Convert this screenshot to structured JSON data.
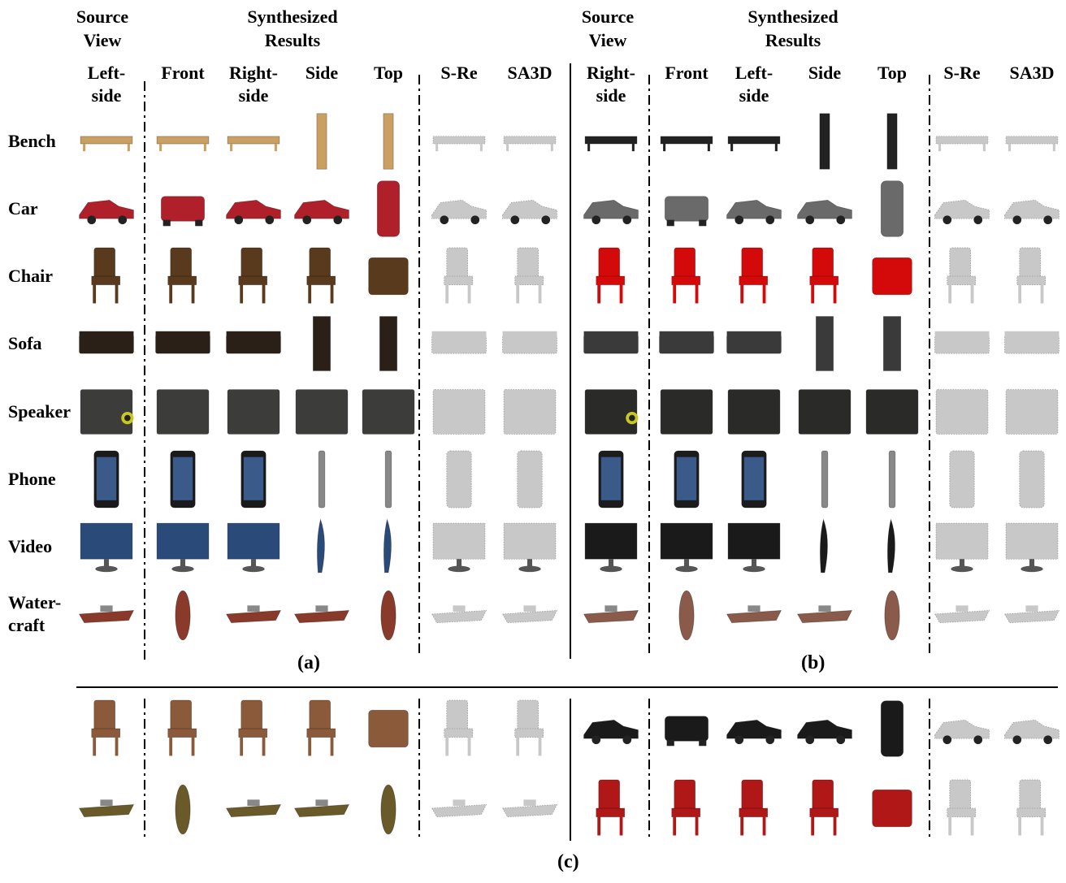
{
  "panel_a": {
    "header_source": "Source\nView",
    "header_synth": "Synthesized\nResults",
    "columns": [
      "Left-\nside",
      "Front",
      "Right-\nside",
      "Side",
      "Top",
      "S-Re",
      "SA3D"
    ],
    "label": "(a)"
  },
  "panel_b": {
    "header_source": "Source\nView",
    "header_synth": "Synthesized\nResults",
    "columns": [
      "Right-\nside",
      "Front",
      "Left-\nside",
      "Side",
      "Top",
      "S-Re",
      "SA3D"
    ],
    "label": "(b)"
  },
  "rows": [
    "Bench",
    "Car",
    "Chair",
    "Sofa",
    "Speaker",
    "Phone",
    "Video",
    "Water-\ncraft"
  ],
  "panel_c": {
    "label": "(c)"
  },
  "colors": {
    "bench_a": "#c9a062",
    "car_a": "#b0202a",
    "chair_a": "#5a3a1c",
    "sofa_a": "#2b2018",
    "speaker_a": "#3c3c3a",
    "phone_a": "#1a1a1a",
    "video_a": "#2a4a7a",
    "watercraft_a": "#8a3a2a",
    "bench_b": "#222222",
    "car_b": "#6a6a6a",
    "chair_b": "#d40a0a",
    "sofa_b": "#3a3a3a",
    "speaker_b": "#2a2a28",
    "phone_b": "#1c1c1c",
    "video_b": "#1a1a1a",
    "watercraft_b": "#8a5a4a",
    "voxel": "#c8c8c8"
  }
}
